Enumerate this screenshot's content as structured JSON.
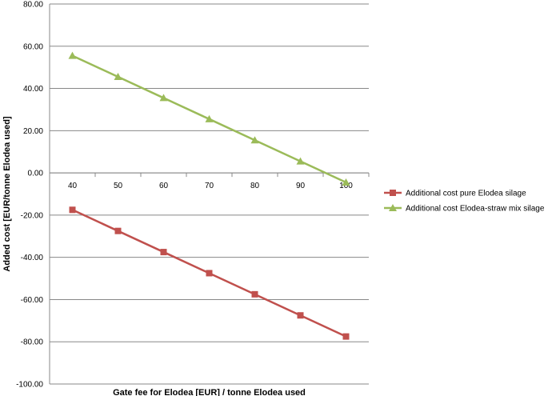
{
  "chart_data": {
    "type": "line",
    "title": "",
    "xlabel": "Gate fee for Elodea [EUR] / tonne Elodea used",
    "ylabel": "Added cost [EUR/tonne Elodea used]",
    "x": [
      40,
      50,
      60,
      70,
      80,
      90,
      100
    ],
    "x_tick_labels": [
      "40",
      "50",
      "60",
      "70",
      "80",
      "90",
      "100"
    ],
    "ylim": [
      -100,
      80
    ],
    "y_ticks": [
      80,
      60,
      40,
      20,
      0,
      -20,
      -40,
      -60,
      -80,
      -100
    ],
    "y_tick_labels": [
      "80.00",
      "60.00",
      "40.00",
      "20.00",
      "0.00",
      "-20.00",
      "-40.00",
      "-60.00",
      "-80.00",
      "-100.00"
    ],
    "grid": "horizontal",
    "legend_position": "right",
    "series": [
      {
        "name": "Additional cost pure Elodea silage",
        "values": [
          -17.5,
          -27.5,
          -37.5,
          -47.5,
          -57.5,
          -67.5,
          -77.5
        ],
        "color": "#c0504d",
        "marker": "square"
      },
      {
        "name": "Additional cost Elodea-straw mix silage",
        "values": [
          55.5,
          45.5,
          35.5,
          25.5,
          15.5,
          5.5,
          -4.5
        ],
        "color": "#9bbb59",
        "marker": "triangle"
      }
    ]
  }
}
